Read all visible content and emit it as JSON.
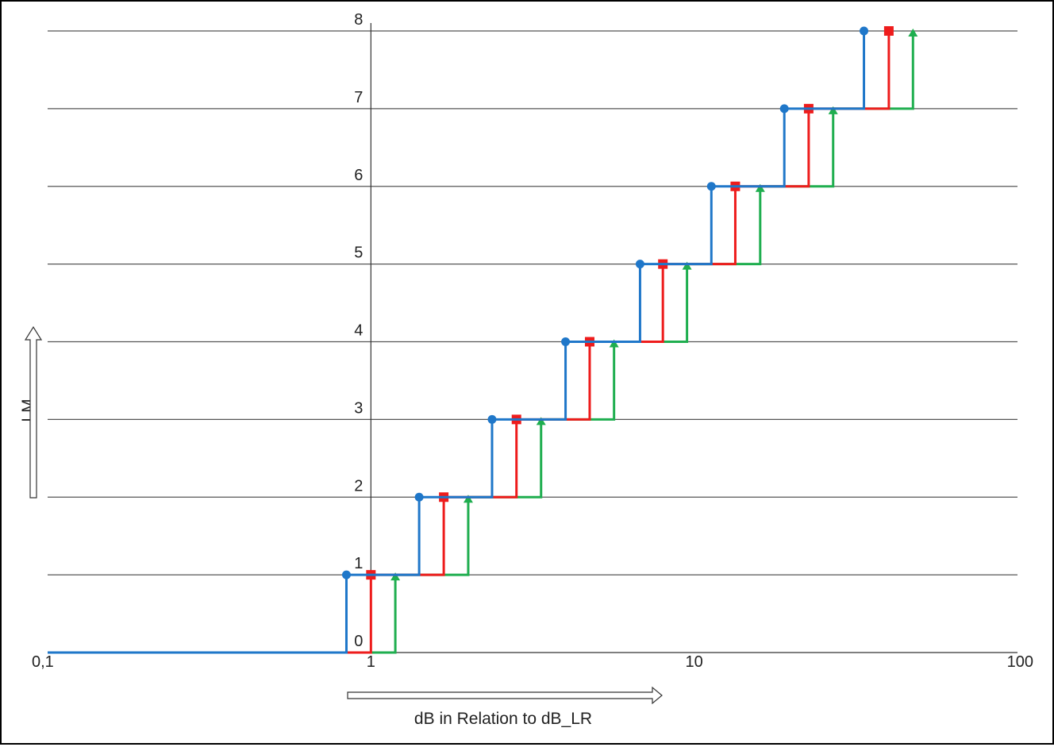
{
  "chart_data": {
    "type": "line",
    "title": "",
    "xlabel": "dB in Relation to dB_LR",
    "ylabel": "LM",
    "xscale": "log",
    "xlim": [
      0.1,
      100
    ],
    "ylim": [
      0,
      8
    ],
    "x_tick_labels": [
      "0,1",
      "1",
      "10",
      "100"
    ],
    "x_tick_values": [
      0.1,
      1,
      10,
      100
    ],
    "y_tick_labels": [
      "0",
      "1",
      "2",
      "3",
      "4",
      "5",
      "6",
      "7",
      "8"
    ],
    "y_tick_values": [
      0,
      1,
      2,
      3,
      4,
      5,
      6,
      7,
      8
    ],
    "grid": "horizontal",
    "series": [
      {
        "color": "#1f77c9",
        "marker": "circle",
        "step_x": [
          0.84,
          1.41,
          2.37,
          4.0,
          6.8,
          11.3,
          19.0,
          33.5
        ],
        "levels": [
          1,
          2,
          3,
          4,
          5,
          6,
          7,
          8
        ]
      },
      {
        "color": "#ee1c1c",
        "marker": "square",
        "step_x": [
          1.0,
          1.68,
          2.82,
          4.75,
          8.0,
          13.4,
          22.6,
          40.0
        ],
        "levels": [
          1,
          2,
          3,
          4,
          5,
          6,
          7,
          8
        ]
      },
      {
        "color": "#1fae4f",
        "marker": "arrow",
        "step_x": [
          1.19,
          2.0,
          3.36,
          5.65,
          9.5,
          16.0,
          26.9,
          47.5
        ],
        "levels": [
          1,
          2,
          3,
          4,
          5,
          6,
          7,
          8
        ]
      }
    ]
  }
}
